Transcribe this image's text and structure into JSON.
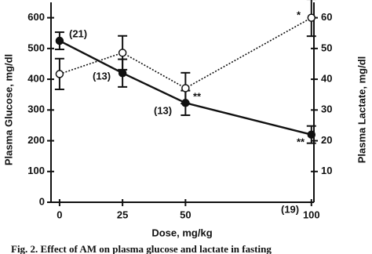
{
  "chart_data": {
    "type": "line",
    "x_label": "Dose, mg/kg",
    "y_label": "Plasma Glucose, mg/dl",
    "y2_label": "Plasma Lactate, mg/dl",
    "caption": "Fig. 2. Effect of AM on plasma glucose and lactate in fasting",
    "x": [
      0,
      25,
      50,
      100
    ],
    "xlim": [
      -3.4,
      101
    ],
    "xticks": [
      0,
      25,
      50,
      100
    ],
    "ylim": [
      0,
      650
    ],
    "yticks": [
      0,
      100,
      200,
      300,
      400,
      500,
      600
    ],
    "y2lim": [
      0,
      65
    ],
    "y2ticks": [
      10,
      20,
      30,
      40,
      50,
      60
    ],
    "series": [
      {
        "values": [
          525,
          420,
          323,
          220
        ],
        "errors": [
          28,
          45,
          40,
          28
        ],
        "color": "#111111",
        "line_style": "solid",
        "marker": "filled",
        "axis": "y"
      },
      {
        "values": [
          41.7,
          48.6,
          37.1,
          60
        ],
        "errors": [
          5,
          5.5,
          5,
          6
        ],
        "color": "#111111",
        "line_style": "dotted",
        "marker": "open",
        "axis": "y2"
      }
    ],
    "annotations": [
      "(21)",
      "(13)",
      "(13)",
      "(19)",
      "**",
      "**",
      "*"
    ]
  }
}
